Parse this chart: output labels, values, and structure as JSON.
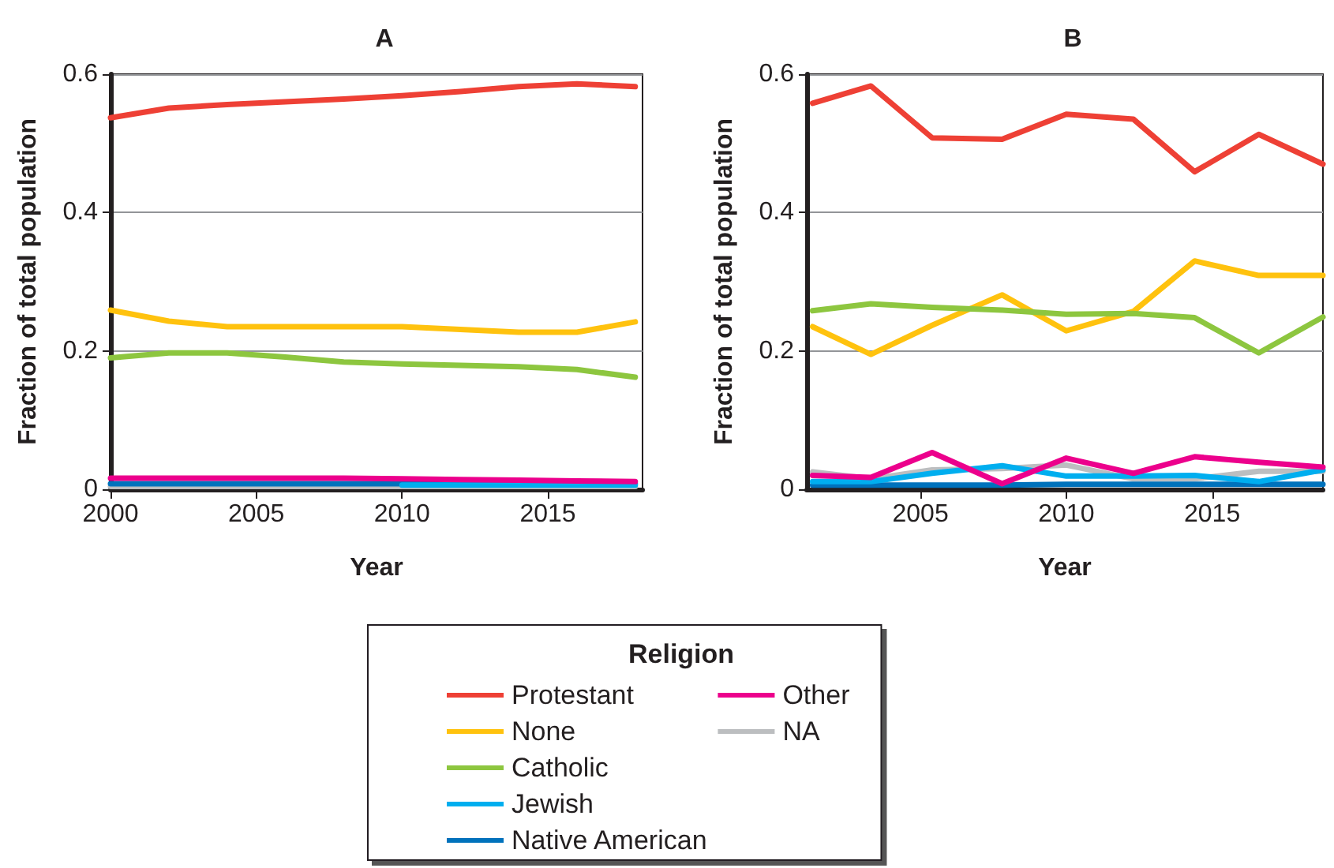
{
  "chart_data": [
    {
      "type": "line",
      "title": "A",
      "xlabel": "Year",
      "ylabel": "Fraction of total population",
      "x": [
        2000,
        2002,
        2004,
        2006,
        2008,
        2010,
        2012,
        2014,
        2016,
        2018
      ],
      "xlim": [
        2000,
        2018.25
      ],
      "xticks": [
        2000,
        2005,
        2010,
        2015
      ],
      "ylim": [
        0,
        0.6
      ],
      "yticks": [
        0,
        0.2,
        0.4,
        0.6
      ],
      "grid": "y",
      "marker": "none",
      "line_style": "solid",
      "series": [
        {
          "color": "#ee4035",
          "values": [
            0.537,
            0.551,
            0.556,
            0.56,
            0.564,
            0.569,
            0.575,
            0.582,
            0.586,
            0.582
          ]
        },
        {
          "color": "#ffc20e",
          "values": [
            0.259,
            0.243,
            0.235,
            0.235,
            0.235,
            0.235,
            0.231,
            0.227,
            0.227,
            0.242
          ]
        },
        {
          "color": "#8dc63f",
          "values": [
            0.19,
            0.197,
            0.197,
            0.191,
            0.184,
            0.181,
            0.179,
            0.177,
            0.173,
            0.162
          ]
        },
        {
          "color": "#bcbec0",
          "values": [
            0.004,
            0.004,
            0.004,
            0.004,
            0.004,
            0.004,
            0.004,
            0.004,
            0.004,
            0.004
          ]
        },
        {
          "color": "#0072bc",
          "values": [
            0.008,
            0.008,
            0.008,
            0.008,
            0.008,
            0.008,
            0.008,
            0.008,
            0.008,
            0.008
          ]
        },
        {
          "color": "#00aeef",
          "values": [
            null,
            null,
            null,
            null,
            null,
            0.006,
            0.006,
            0.006,
            0.006,
            0.006
          ]
        },
        {
          "color": "#ec008c",
          "values": [
            0.016,
            0.016,
            0.016,
            0.016,
            0.016,
            0.015,
            0.014,
            0.013,
            0.012,
            0.011
          ]
        }
      ]
    },
    {
      "type": "line",
      "title": "B",
      "xlabel": "Year",
      "ylabel": "Fraction of total population",
      "x": [
        2001.3,
        2003.3,
        2005.4,
        2007.8,
        2010,
        2012.3,
        2014.4,
        2016.6,
        2018.8
      ],
      "xlim": [
        2001.1,
        2018.8
      ],
      "xticks": [
        2005,
        2010,
        2015
      ],
      "ylim": [
        0,
        0.6
      ],
      "yticks": [
        0,
        0.2,
        0.4,
        0.6
      ],
      "grid": "y",
      "legend": "bottom",
      "legend_title": "Religion",
      "marker": "none",
      "line_style": "solid",
      "series": [
        {
          "name": "Protestant",
          "color": "#ee4035",
          "values": [
            0.558,
            0.583,
            0.508,
            0.506,
            0.542,
            0.535,
            0.459,
            0.513,
            0.47
          ]
        },
        {
          "name": "None",
          "color": "#ffc20e",
          "values": [
            0.235,
            0.195,
            0.237,
            0.281,
            0.229,
            0.257,
            0.33,
            0.309,
            0.309
          ]
        },
        {
          "name": "Catholic",
          "color": "#8dc63f",
          "values": [
            0.258,
            0.268,
            0.263,
            0.259,
            0.253,
            0.254,
            0.248,
            0.197,
            0.249
          ]
        },
        {
          "name": "NA",
          "color": "#bcbec0",
          "values": [
            0.025,
            0.015,
            0.028,
            0.03,
            0.035,
            0.015,
            0.015,
            0.026,
            0.026
          ]
        },
        {
          "name": "Native American",
          "color": "#0072bc",
          "values": [
            0.006,
            0.006,
            0.006,
            0.006,
            0.007,
            0.007,
            0.007,
            0.007,
            0.007
          ]
        },
        {
          "name": "Jewish",
          "color": "#00aeef",
          "values": [
            0.011,
            0.011,
            0.023,
            0.034,
            0.019,
            0.019,
            0.02,
            0.011,
            0.028
          ]
        },
        {
          "name": "Other",
          "color": "#ec008c",
          "values": [
            0.02,
            0.017,
            0.053,
            0.008,
            0.045,
            0.023,
            0.047,
            0.039,
            0.032
          ]
        }
      ]
    }
  ]
}
